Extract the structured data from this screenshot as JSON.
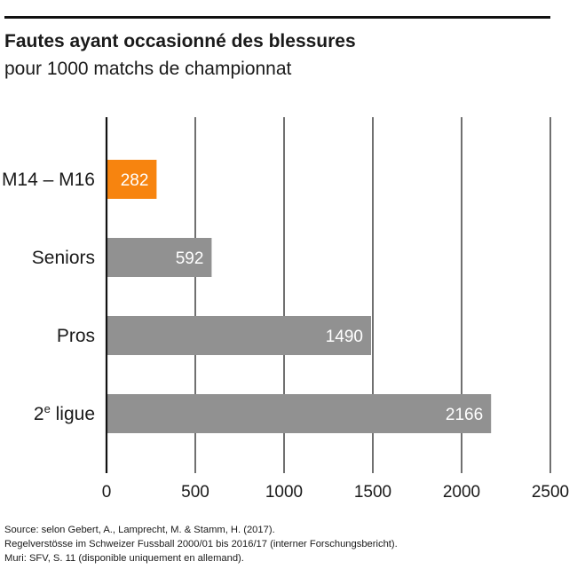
{
  "chart_data": {
    "type": "bar",
    "orientation": "horizontal",
    "title": "Fautes ayant occasionné des blessures",
    "subtitle": "pour 1000 matchs de championnat",
    "categories": [
      {
        "label": "M14 – M16",
        "sup": ""
      },
      {
        "label": "Seniors",
        "sup": ""
      },
      {
        "label": "Pros",
        "sup": ""
      },
      {
        "label": "2 ligue",
        "sup": "e"
      }
    ],
    "values": [
      282,
      592,
      1490,
      2166
    ],
    "colors": [
      "#f7840f",
      "#919191",
      "#919191",
      "#919191"
    ],
    "xlim": [
      0,
      2500
    ],
    "xticks": [
      0,
      500,
      1000,
      1500,
      2000,
      2500
    ],
    "grid": true,
    "xlabel": "",
    "ylabel": ""
  },
  "source": [
    "Source: selon Gebert, A., Lamprecht, M. & Stamm, H. (2017).",
    "Regelverstösse im Schweizer Fussball 2000/01 bis 2016/17 (interner Forschungsbericht).",
    "Muri: SFV, S. 11 (disponible uniquement en allemand)."
  ]
}
